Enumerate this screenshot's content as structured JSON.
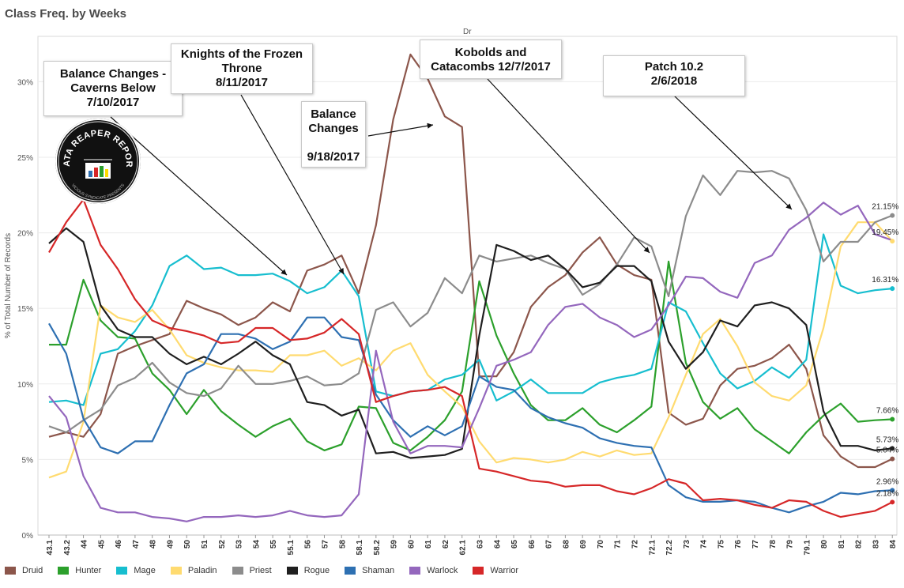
{
  "header": {
    "title": "Class Freq. by Weeks",
    "column_header": "Dr"
  },
  "logo": {
    "text": "DATA REAPER REPORT",
    "subtext": "VICIOUS SYNDICATE PRESENTS"
  },
  "annotations": [
    {
      "lines": [
        "Balance Changes -",
        "Caverns Below",
        "7/10/2017"
      ]
    },
    {
      "lines": [
        "Knights of the Frozen",
        "Throne",
        "8/11/2017"
      ]
    },
    {
      "lines": [
        "Balance",
        "Changes",
        "",
        "9/18/2017"
      ]
    },
    {
      "lines": [
        "Kobolds and",
        "Catacombs 12/7/2017"
      ]
    },
    {
      "lines": [
        "Patch 10.2",
        "2/6/2018"
      ]
    }
  ],
  "chart_data": {
    "type": "line",
    "ylabel": "% of Total Number of Records",
    "xlabel": "",
    "ylim": [
      0,
      33
    ],
    "y_ticks": [
      "0%",
      "5%",
      "10%",
      "15%",
      "20%",
      "25%",
      "30%"
    ],
    "grid": "horizontal",
    "legend_position": "bottom",
    "categories": [
      "43.1",
      "43.2",
      "44",
      "45",
      "46",
      "47",
      "48",
      "49",
      "50",
      "51",
      "52",
      "53",
      "54",
      "55",
      "55.1",
      "56",
      "57",
      "58",
      "58.1",
      "58.2",
      "59",
      "60",
      "61",
      "62",
      "62.1",
      "63",
      "64",
      "65",
      "66",
      "67",
      "68",
      "69",
      "70",
      "71",
      "72",
      "72.1",
      "72.2",
      "73",
      "74",
      "75",
      "76",
      "77",
      "78",
      "79",
      "79.1",
      "80",
      "81",
      "82",
      "83",
      "84"
    ],
    "series": [
      {
        "name": "Druid",
        "color": "#8c564b",
        "values": [
          6.5,
          6.8,
          6.5,
          8.0,
          12.0,
          12.5,
          12.9,
          13.3,
          15.5,
          15.0,
          14.6,
          13.9,
          14.4,
          15.4,
          14.8,
          17.5,
          17.9,
          18.5,
          16.0,
          20.5,
          27.5,
          31.8,
          30.2,
          27.7,
          27.0,
          10.5,
          10.5,
          12.1,
          15.1,
          16.4,
          17.2,
          18.7,
          19.7,
          17.9,
          17.2,
          16.9,
          8.1,
          7.3,
          7.7,
          9.9,
          11.0,
          11.2,
          11.7,
          12.6,
          11.0,
          6.6,
          5.2,
          4.5,
          4.5,
          5.04
        ]
      },
      {
        "name": "Hunter",
        "color": "#2ca02c",
        "values": [
          12.6,
          12.6,
          16.9,
          14.2,
          13.1,
          13.0,
          10.7,
          9.6,
          8.0,
          9.6,
          8.2,
          7.3,
          6.5,
          7.2,
          7.7,
          6.2,
          5.6,
          6.0,
          8.5,
          8.4,
          6.1,
          5.6,
          6.5,
          7.6,
          9.5,
          16.8,
          13.2,
          10.7,
          8.6,
          7.6,
          7.6,
          8.4,
          7.3,
          6.8,
          7.6,
          8.5,
          18.1,
          11.4,
          8.8,
          7.7,
          8.4,
          7.0,
          6.2,
          5.4,
          6.8,
          7.9,
          8.7,
          7.5,
          7.6,
          7.66
        ]
      },
      {
        "name": "Mage",
        "color": "#17becf",
        "values": [
          8.8,
          8.9,
          8.6,
          12.0,
          12.3,
          13.5,
          15.2,
          17.8,
          18.5,
          17.6,
          17.7,
          17.2,
          17.2,
          17.3,
          16.8,
          16.0,
          16.4,
          17.5,
          15.8,
          9.5,
          9.2,
          9.5,
          9.6,
          10.3,
          10.6,
          11.6,
          8.9,
          9.5,
          10.3,
          9.4,
          9.4,
          9.4,
          10.1,
          10.4,
          10.6,
          11.0,
          15.4,
          14.8,
          12.7,
          10.7,
          9.7,
          10.2,
          11.1,
          10.4,
          11.6,
          19.9,
          16.5,
          16.0,
          16.2,
          16.31
        ]
      },
      {
        "name": "Paladin",
        "color": "#ffdb70",
        "values": [
          3.8,
          4.2,
          7.5,
          15.2,
          14.4,
          14.1,
          14.9,
          13.6,
          11.9,
          11.4,
          11.1,
          10.9,
          10.9,
          10.8,
          11.9,
          11.9,
          12.2,
          11.2,
          11.7,
          10.9,
          12.2,
          12.7,
          10.6,
          9.5,
          8.5,
          6.2,
          4.8,
          5.1,
          5.0,
          4.8,
          5.0,
          5.5,
          5.2,
          5.6,
          5.3,
          5.4,
          7.8,
          10.6,
          13.3,
          14.3,
          12.5,
          10.1,
          9.2,
          8.9,
          9.9,
          13.7,
          19.1,
          20.7,
          20.7,
          19.45
        ]
      },
      {
        "name": "Priest",
        "color": "#8c8c8c",
        "values": [
          7.2,
          6.8,
          7.6,
          8.3,
          9.9,
          10.4,
          11.4,
          10.1,
          9.4,
          9.2,
          9.7,
          11.2,
          10.0,
          10.0,
          10.2,
          10.5,
          9.9,
          10.0,
          10.7,
          14.9,
          15.4,
          13.8,
          14.7,
          17.0,
          16.0,
          18.5,
          18.1,
          18.3,
          18.5,
          18.0,
          17.6,
          15.9,
          16.6,
          17.9,
          19.7,
          19.1,
          15.8,
          21.1,
          23.8,
          22.5,
          24.1,
          24.0,
          24.1,
          23.6,
          21.5,
          18.1,
          19.4,
          19.4,
          20.7,
          21.15
        ]
      },
      {
        "name": "Rogue",
        "color": "#1f1f1f",
        "values": [
          19.3,
          20.3,
          19.4,
          15.2,
          13.6,
          13.1,
          13.1,
          12.0,
          11.3,
          11.8,
          11.3,
          12.0,
          12.8,
          11.9,
          11.3,
          8.8,
          8.6,
          7.9,
          8.3,
          5.4,
          5.5,
          5.1,
          5.2,
          5.3,
          5.7,
          13.2,
          19.2,
          18.8,
          18.2,
          18.5,
          17.6,
          16.4,
          16.7,
          17.8,
          17.8,
          16.8,
          12.8,
          11.0,
          12.1,
          14.2,
          13.8,
          15.2,
          15.4,
          15.0,
          13.9,
          8.2,
          5.9,
          5.9,
          5.6,
          5.73
        ]
      },
      {
        "name": "Shaman",
        "color": "#2e70b2",
        "values": [
          14.0,
          12.0,
          7.7,
          5.8,
          5.4,
          6.2,
          6.2,
          8.6,
          10.7,
          11.3,
          13.3,
          13.3,
          13.0,
          12.3,
          12.8,
          14.4,
          14.4,
          13.1,
          12.9,
          9.3,
          7.6,
          6.5,
          7.2,
          6.6,
          7.2,
          10.5,
          9.8,
          9.6,
          8.4,
          7.8,
          7.4,
          7.1,
          6.4,
          6.1,
          5.9,
          5.8,
          3.3,
          2.5,
          2.2,
          2.2,
          2.3,
          2.2,
          1.8,
          1.5,
          1.9,
          2.2,
          2.8,
          2.7,
          2.9,
          2.96
        ]
      },
      {
        "name": "Warlock",
        "color": "#9467bd",
        "values": [
          9.2,
          7.8,
          3.9,
          1.8,
          1.5,
          1.5,
          1.2,
          1.1,
          0.9,
          1.2,
          1.2,
          1.3,
          1.2,
          1.3,
          1.6,
          1.3,
          1.2,
          1.3,
          2.7,
          12.2,
          7.5,
          5.4,
          5.9,
          5.9,
          5.8,
          8.4,
          11.2,
          11.6,
          12.1,
          13.9,
          15.1,
          15.3,
          14.4,
          13.9,
          13.1,
          13.6,
          15.2,
          17.1,
          17.0,
          16.1,
          15.7,
          18.0,
          18.5,
          20.2,
          21.0,
          22.0,
          21.2,
          21.8,
          19.9,
          19.5
        ]
      },
      {
        "name": "Warrior",
        "color": "#d62728",
        "values": [
          18.7,
          20.7,
          22.2,
          19.2,
          17.6,
          15.6,
          14.2,
          13.7,
          13.5,
          13.2,
          12.7,
          12.8,
          13.7,
          13.7,
          12.9,
          13.0,
          13.4,
          14.3,
          13.3,
          8.8,
          9.2,
          9.5,
          9.6,
          9.8,
          9.2,
          4.4,
          4.2,
          3.9,
          3.6,
          3.5,
          3.2,
          3.3,
          3.3,
          2.9,
          2.7,
          3.1,
          3.7,
          3.4,
          2.3,
          2.4,
          2.3,
          2.0,
          1.8,
          2.3,
          2.2,
          1.6,
          1.2,
          1.4,
          1.6,
          2.18
        ]
      }
    ],
    "end_labels": [
      {
        "series": "Priest",
        "text": "21.15%"
      },
      {
        "series": "Paladin",
        "text": "19.45%"
      },
      {
        "series": "Mage",
        "text": "16.31%"
      },
      {
        "series": "Hunter",
        "text": "7.66%"
      },
      {
        "series": "Rogue",
        "text": "5.73%"
      },
      {
        "series": "Druid",
        "text": "5.04%"
      },
      {
        "series": "Shaman",
        "text": "2.96%"
      },
      {
        "series": "Warrior",
        "text": "2.18%"
      }
    ]
  }
}
